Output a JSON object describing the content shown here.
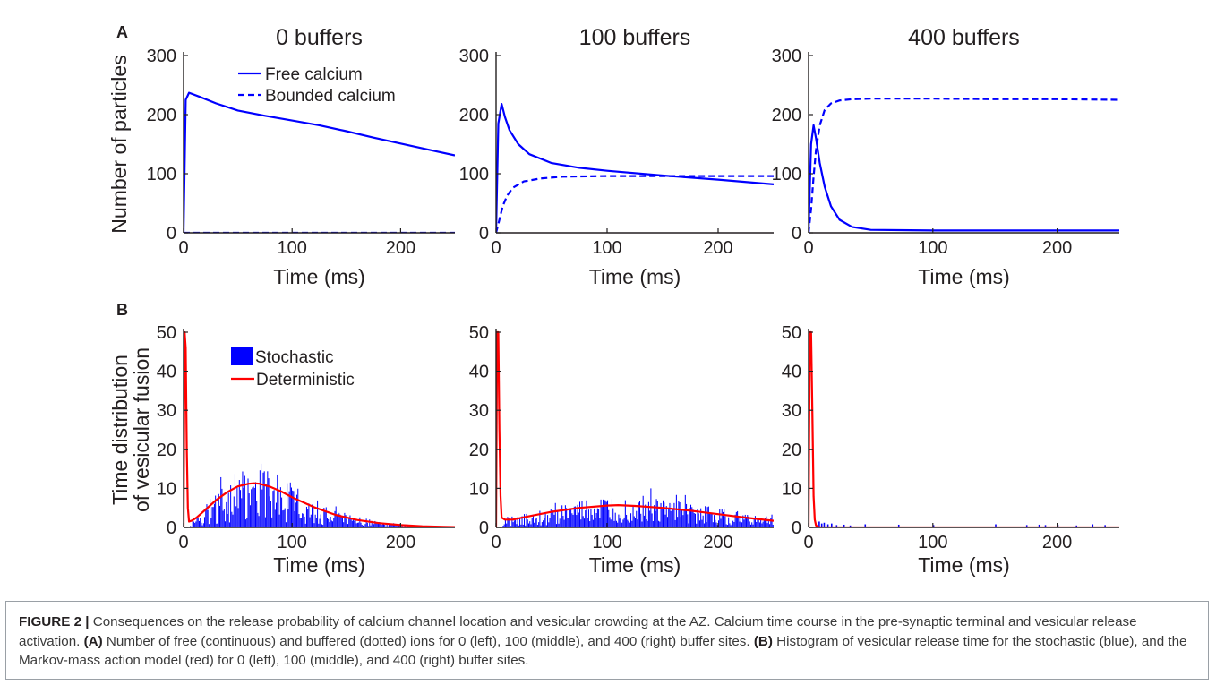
{
  "figure": {
    "panel_labels": [
      "A",
      "B"
    ],
    "caption": {
      "label": "FIGURE 2 |",
      "parts": [
        {
          "b": false,
          "t": " Consequences on the release probability of calcium channel location and vesicular crowding at the AZ. Calcium time course in the pre-synaptic terminal and vesicular release activation. "
        },
        {
          "b": true,
          "t": "(A)"
        },
        {
          "b": false,
          "t": " Number of free (continuous) and buffered (dotted) ions for 0 (left), 100 (middle), and 400 (right) buffer sites. "
        },
        {
          "b": true,
          "t": "(B)"
        },
        {
          "b": false,
          "t": " Histogram of vesicular release time for the stochastic (blue), and the Markov-mass action model (red) for 0 (left), 100 (middle), and 400 (right) buffer sites."
        }
      ]
    }
  },
  "colors": {
    "free": "#0000ff",
    "bound": "#0000ff",
    "stochastic": "#0000ff",
    "deterministic": "#ff0000",
    "axis": "#231f20"
  },
  "chart_data": [
    {
      "type": "line",
      "panel": "A",
      "title": "0 buffers",
      "xlabel": "Time (ms)",
      "ylabel": "Number of particles",
      "xlim": [
        0,
        250
      ],
      "ylim": [
        0,
        300
      ],
      "xticks": [
        0,
        100,
        200
      ],
      "yticks": [
        0,
        100,
        200,
        300
      ],
      "legend": {
        "position": "top-right",
        "entries": [
          "Free calcium",
          "Bounded calcium"
        ]
      },
      "series": [
        {
          "name": "Free calcium",
          "style": "solid",
          "x": [
            0,
            2,
            5,
            15,
            30,
            50,
            75,
            100,
            125,
            150,
            175,
            200,
            225,
            250
          ],
          "y": [
            0,
            225,
            237,
            230,
            219,
            207,
            198,
            190,
            182,
            172,
            161,
            151,
            141,
            131
          ]
        },
        {
          "name": "Bounded calcium",
          "style": "dashed",
          "x": [
            0,
            250
          ],
          "y": [
            0,
            0
          ]
        }
      ]
    },
    {
      "type": "line",
      "title": "100 buffers",
      "xlabel": "Time (ms)",
      "ylabel": "",
      "xlim": [
        0,
        250
      ],
      "ylim": [
        0,
        300
      ],
      "xticks": [
        0,
        100,
        200
      ],
      "yticks": [
        0,
        100,
        200,
        300
      ],
      "series": [
        {
          "name": "Free calcium",
          "style": "solid",
          "x": [
            0,
            2,
            5,
            8,
            12,
            20,
            30,
            50,
            75,
            100,
            150,
            200,
            250
          ],
          "y": [
            0,
            185,
            218,
            196,
            174,
            150,
            133,
            118,
            110,
            105,
            97,
            90,
            82
          ]
        },
        {
          "name": "Bounded calcium",
          "style": "dashed",
          "x": [
            0,
            3,
            6,
            10,
            15,
            25,
            40,
            60,
            100,
            150,
            200,
            250
          ],
          "y": [
            0,
            22,
            45,
            63,
            76,
            87,
            92,
            95,
            96,
            96,
            96,
            96
          ]
        }
      ]
    },
    {
      "type": "line",
      "title": "400 buffers",
      "xlabel": "Time (ms)",
      "ylabel": "",
      "xlim": [
        0,
        250
      ],
      "ylim": [
        0,
        300
      ],
      "xticks": [
        0,
        100,
        200
      ],
      "yticks": [
        0,
        100,
        200,
        300
      ],
      "series": [
        {
          "name": "Free calcium",
          "style": "solid",
          "x": [
            0,
            2,
            4,
            6,
            9,
            13,
            18,
            25,
            35,
            50,
            100,
            150,
            200,
            250
          ],
          "y": [
            0,
            150,
            182,
            160,
            118,
            78,
            45,
            22,
            10,
            5,
            4,
            4,
            4,
            4
          ]
        },
        {
          "name": "Bounded calcium",
          "style": "dashed",
          "x": [
            0,
            2,
            4,
            6,
            9,
            13,
            18,
            25,
            35,
            50,
            100,
            150,
            200,
            250
          ],
          "y": [
            0,
            40,
            95,
            140,
            182,
            208,
            219,
            224,
            226,
            227,
            227,
            226,
            226,
            225
          ]
        }
      ]
    },
    {
      "type": "bar",
      "panel": "B",
      "xlabel": "Time (ms)",
      "ylabel": "Time distribution of vesicular fusion",
      "xlim": [
        0,
        250
      ],
      "ylim": [
        0,
        50
      ],
      "xticks": [
        0,
        100,
        200
      ],
      "yticks": [
        0,
        10,
        20,
        30,
        40,
        50
      ],
      "legend": {
        "position": "top-left",
        "entries": [
          "Stochastic",
          "Deterministic"
        ]
      },
      "series": [
        {
          "name": "Stochastic",
          "kind": "histogram",
          "bin_width": 1,
          "envelope": {
            "x": [
              0,
              5,
              10,
              20,
              30,
              40,
              50,
              60,
              70,
              80,
              90,
              100,
              120,
              140,
              160,
              180,
              200,
              220,
              240,
              250
            ],
            "y": [
              0,
              0,
              2,
              4,
              6,
              8,
              10,
              11,
              11,
              10,
              9,
              7.5,
              5,
              3,
              1.8,
              1,
              0.6,
              0.3,
              0.2,
              0.1
            ]
          }
        },
        {
          "name": "Deterministic",
          "kind": "line",
          "x": [
            0,
            1,
            2,
            3,
            4,
            5,
            8,
            12,
            20,
            30,
            40,
            50,
            60,
            65,
            70,
            80,
            90,
            100,
            120,
            140,
            160,
            180,
            200,
            220,
            240,
            250
          ],
          "y": [
            0,
            50,
            46,
            20,
            5,
            1.5,
            1.8,
            2.5,
            4.5,
            7,
            9,
            10.5,
            11.2,
            11.3,
            11.2,
            10.4,
            9.2,
            7.7,
            5.2,
            3.2,
            1.9,
            1.1,
            0.6,
            0.3,
            0.15,
            0.1
          ]
        }
      ]
    },
    {
      "type": "bar",
      "xlabel": "Time (ms)",
      "ylabel": "",
      "xlim": [
        0,
        250
      ],
      "ylim": [
        0,
        50
      ],
      "xticks": [
        0,
        100,
        200
      ],
      "yticks": [
        0,
        10,
        20,
        30,
        40,
        50
      ],
      "series": [
        {
          "name": "Stochastic",
          "kind": "histogram",
          "bin_width": 1,
          "envelope": {
            "x": [
              0,
              5,
              10,
              25,
              50,
              75,
              100,
              125,
              150,
              175,
              200,
              225,
              250
            ],
            "y": [
              0,
              0,
              1.8,
              2.5,
              3.6,
              4.6,
              5.2,
              5.3,
              5,
              4.3,
              3.4,
              2.5,
              1.8
            ]
          }
        },
        {
          "name": "Deterministic",
          "kind": "line",
          "x": [
            0,
            1,
            2,
            3,
            4,
            5,
            8,
            15,
            25,
            50,
            75,
            100,
            110,
            125,
            150,
            175,
            200,
            225,
            250
          ],
          "y": [
            0,
            50,
            50,
            25,
            8,
            2.5,
            2,
            2,
            2.6,
            4,
            5,
            5.6,
            5.7,
            5.5,
            5,
            4.3,
            3.4,
            2.5,
            1.7
          ]
        }
      ]
    },
    {
      "type": "bar",
      "xlabel": "Time (ms)",
      "ylabel": "",
      "xlim": [
        0,
        250
      ],
      "ylim": [
        0,
        50
      ],
      "xticks": [
        0,
        100,
        200
      ],
      "yticks": [
        0,
        10,
        20,
        30,
        40,
        50
      ],
      "series": [
        {
          "name": "Stochastic",
          "kind": "histogram",
          "bin_width": 1,
          "spikes_x": [
            8,
            10,
            12,
            15,
            18,
            22,
            28,
            33,
            45,
            72,
            100,
            150,
            175,
            185,
            190,
            200,
            215,
            228,
            238
          ],
          "spikes_y": [
            1.5,
            1,
            1.2,
            0.8,
            1,
            0.6,
            0.7,
            0.5,
            0.8,
            0.7,
            0.6,
            0.8,
            0.6,
            0.7,
            0.6,
            0.7,
            0.5,
            0.8,
            0.6
          ]
        },
        {
          "name": "Deterministic",
          "kind": "line",
          "x": [
            0,
            1,
            2,
            3,
            4,
            5,
            6,
            8,
            10,
            15,
            250
          ],
          "y": [
            0,
            50,
            50,
            30,
            8,
            2,
            0.5,
            0.1,
            0,
            0,
            0
          ]
        }
      ]
    }
  ]
}
